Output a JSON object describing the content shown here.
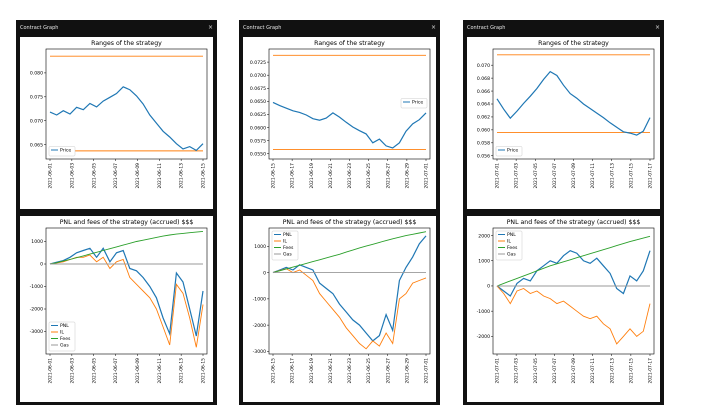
{
  "windows": [
    {
      "title": "Contract Graph",
      "close_glyph": "×",
      "top_chart": {
        "type": "line",
        "title": "Ranges of the strategy",
        "yticks": [
          "0.080",
          "0.075",
          "0.070",
          "0.065"
        ],
        "xticks": [
          "2021-06-01",
          "2021-06-03",
          "2021-06-05",
          "2021-06-07",
          "2021-06-09",
          "2021-06-11",
          "2021-06-13",
          "2021-06-15"
        ],
        "ylim": [
          0.062,
          0.085
        ],
        "range_upper": 0.0835,
        "range_lower": 0.0637,
        "legend": [
          "Price"
        ],
        "legend_pos": "bottom-left",
        "series": [
          {
            "name": "Price",
            "color": "#1f77b4",
            "values": [
              0.0718,
              0.0712,
              0.0721,
              0.0714,
              0.0728,
              0.0723,
              0.0736,
              0.0729,
              0.0741,
              0.0749,
              0.0757,
              0.0771,
              0.0765,
              0.0752,
              0.0735,
              0.0712,
              0.0695,
              0.0678,
              0.0666,
              0.0652,
              0.0641,
              0.0646,
              0.0638,
              0.0652
            ]
          }
        ],
        "range_color": "#ff7f0e"
      },
      "bottom_chart": {
        "type": "line",
        "title": "PNL and fees of the strategy (accrued) $$$",
        "yticks": [
          "1000",
          "0",
          "-1000",
          "-2000",
          "-3000"
        ],
        "xticks": [
          "2021-06-01",
          "2021-06-03",
          "2021-06-05",
          "2021-06-07",
          "2021-06-09",
          "2021-06-11",
          "2021-06-13",
          "2021-06-15"
        ],
        "ylim": [
          -4000,
          1600
        ],
        "legend": [
          "PNL",
          "IL",
          "Fees",
          "Gas"
        ],
        "legend_pos": "bottom-left",
        "series": [
          {
            "name": "PNL",
            "color": "#1f77b4",
            "values": [
              0,
              80,
              150,
              300,
              500,
              600,
              700,
              300,
              700,
              100,
              500,
              600,
              -200,
              -300,
              -600,
              -1000,
              -1500,
              -2400,
              -3100,
              -400,
              -800,
              -2000,
              -3200,
              -1200
            ]
          },
          {
            "name": "IL",
            "color": "#ff7f0e",
            "values": [
              0,
              50,
              100,
              200,
              300,
              300,
              400,
              100,
              300,
              -200,
              100,
              200,
              -600,
              -900,
              -1200,
              -1500,
              -2000,
              -2800,
              -3600,
              -900,
              -1300,
              -2400,
              -3700,
              -1800
            ]
          },
          {
            "name": "Fees",
            "color": "#2ca02c",
            "values": [
              0,
              60,
              130,
              200,
              280,
              360,
              440,
              520,
              600,
              680,
              760,
              840,
              920,
              1000,
              1060,
              1120,
              1180,
              1240,
              1290,
              1330,
              1360,
              1390,
              1420,
              1450
            ]
          },
          {
            "name": "Gas",
            "color": "#999999",
            "values": [
              0,
              0,
              0,
              0,
              0,
              0,
              0,
              0,
              0,
              0,
              0,
              0,
              0,
              0,
              0,
              0,
              0,
              0,
              0,
              0,
              0,
              0,
              0,
              0
            ]
          }
        ]
      }
    },
    {
      "title": "Contract Graph",
      "close_glyph": "×",
      "top_chart": {
        "type": "line",
        "title": "Ranges of the strategy",
        "yticks": [
          "0.0725",
          "0.0700",
          "0.0675",
          "0.0650",
          "0.0625",
          "0.0600",
          "0.0575",
          "0.0550"
        ],
        "xticks": [
          "2021-06-15",
          "2021-06-17",
          "2021-06-19",
          "2021-06-21",
          "2021-06-23",
          "2021-06-25",
          "2021-06-27",
          "2021-06-29",
          "2021-07-01"
        ],
        "ylim": [
          0.054,
          0.075
        ],
        "range_upper": 0.0738,
        "range_lower": 0.0558,
        "legend": [
          "Price"
        ],
        "legend_pos": "center-right",
        "series": [
          {
            "name": "Price",
            "color": "#1f77b4",
            "values": [
              0.0648,
              0.0642,
              0.0637,
              0.0632,
              0.0629,
              0.0624,
              0.0617,
              0.0614,
              0.0618,
              0.0628,
              0.062,
              0.061,
              0.0601,
              0.0594,
              0.0588,
              0.0571,
              0.0578,
              0.0565,
              0.0561,
              0.0571,
              0.0593,
              0.0607,
              0.0615,
              0.0628
            ]
          }
        ],
        "range_color": "#ff7f0e"
      },
      "bottom_chart": {
        "type": "line",
        "title": "PNL and fees of the strategy (accrued) $$$",
        "yticks": [
          "1000",
          "0",
          "-1000",
          "-2000",
          "-3000"
        ],
        "xticks": [
          "2021-06-15",
          "2021-06-17",
          "2021-06-19",
          "2021-06-21",
          "2021-06-23",
          "2021-06-25",
          "2021-06-27",
          "2021-06-29",
          "2021-07-01"
        ],
        "ylim": [
          -3100,
          1700
        ],
        "legend": [
          "PNL",
          "IL",
          "Fees",
          "Gas"
        ],
        "legend_pos": "top-left",
        "series": [
          {
            "name": "PNL",
            "color": "#1f77b4",
            "values": [
              0,
              100,
              200,
              100,
              300,
              200,
              100,
              -400,
              -600,
              -800,
              -1200,
              -1500,
              -1800,
              -2000,
              -2300,
              -2600,
              -2400,
              -1600,
              -2200,
              -300,
              200,
              600,
              1100,
              1400
            ]
          },
          {
            "name": "IL",
            "color": "#ff7f0e",
            "values": [
              0,
              80,
              150,
              0,
              100,
              -100,
              -300,
              -800,
              -1100,
              -1400,
              -1700,
              -2100,
              -2400,
              -2700,
              -2900,
              -2600,
              -2800,
              -2300,
              -2700,
              -1000,
              -800,
              -400,
              -300,
              -200
            ]
          },
          {
            "name": "Fees",
            "color": "#2ca02c",
            "values": [
              0,
              70,
              140,
              210,
              280,
              350,
              420,
              490,
              560,
              630,
              700,
              780,
              860,
              940,
              1010,
              1080,
              1150,
              1220,
              1290,
              1350,
              1410,
              1460,
              1510,
              1560
            ]
          },
          {
            "name": "Gas",
            "color": "#999999",
            "values": [
              0,
              0,
              0,
              0,
              0,
              0,
              0,
              0,
              0,
              0,
              0,
              0,
              0,
              0,
              0,
              0,
              0,
              0,
              0,
              0,
              0,
              0,
              0,
              0
            ]
          }
        ]
      }
    },
    {
      "title": "Contract Graph",
      "close_glyph": "×",
      "top_chart": {
        "type": "line",
        "title": "Ranges of the strategy",
        "yticks": [
          "0.070",
          "0.068",
          "0.066",
          "0.064",
          "0.062",
          "0.060",
          "0.058",
          "0.056"
        ],
        "xticks": [
          "2021-07-01",
          "2021-07-03",
          "2021-07-05",
          "2021-07-07",
          "2021-07-09",
          "2021-07-11",
          "2021-07-13",
          "2021-07-15",
          "2021-07-17"
        ],
        "ylim": [
          0.0555,
          0.0725
        ],
        "range_upper": 0.0716,
        "range_lower": 0.0596,
        "legend": [
          "Price"
        ],
        "legend_pos": "bottom-left",
        "series": [
          {
            "name": "Price",
            "color": "#1f77b4",
            "values": [
              0.0648,
              0.0632,
              0.0618,
              0.0629,
              0.0641,
              0.0652,
              0.0664,
              0.0678,
              0.069,
              0.0684,
              0.0669,
              0.0656,
              0.0649,
              0.064,
              0.0633,
              0.0626,
              0.0619,
              0.0611,
              0.0604,
              0.0597,
              0.0595,
              0.0592,
              0.0598,
              0.0619
            ]
          }
        ],
        "range_color": "#ff7f0e"
      },
      "bottom_chart": {
        "type": "line",
        "title": "PNL and fees of the strategy (accrued) $$$",
        "yticks": [
          "2000",
          "1000",
          "0",
          "-1000",
          "-2000"
        ],
        "xticks": [
          "2021-07-01",
          "2021-07-03",
          "2021-07-05",
          "2021-07-07",
          "2021-07-09",
          "2021-07-11",
          "2021-07-13",
          "2021-07-15",
          "2021-07-17"
        ],
        "ylim": [
          -2700,
          2300
        ],
        "legend": [
          "PNL",
          "IL",
          "Fees",
          "Gas"
        ],
        "legend_pos": "top-left",
        "series": [
          {
            "name": "PNL",
            "color": "#1f77b4",
            "values": [
              0,
              -200,
              -400,
              100,
              300,
              200,
              600,
              800,
              1000,
              900,
              1200,
              1400,
              1300,
              1000,
              900,
              1100,
              800,
              500,
              -100,
              -300,
              400,
              200,
              600,
              1400
            ]
          },
          {
            "name": "IL",
            "color": "#ff7f0e",
            "values": [
              0,
              -300,
              -700,
              -200,
              -100,
              -300,
              -200,
              -400,
              -500,
              -700,
              -600,
              -800,
              -1000,
              -1200,
              -1300,
              -1200,
              -1500,
              -1700,
              -2300,
              -2000,
              -1700,
              -2000,
              -1800,
              -700
            ]
          },
          {
            "name": "Fees",
            "color": "#2ca02c",
            "values": [
              0,
              100,
              200,
              300,
              400,
              500,
              600,
              700,
              800,
              880,
              960,
              1040,
              1120,
              1200,
              1280,
              1360,
              1440,
              1520,
              1600,
              1680,
              1760,
              1830,
              1900,
              1970
            ]
          },
          {
            "name": "Gas",
            "color": "#999999",
            "values": [
              0,
              0,
              0,
              0,
              0,
              0,
              0,
              0,
              0,
              0,
              0,
              0,
              0,
              0,
              0,
              0,
              0,
              0,
              0,
              0,
              0,
              0,
              0,
              0
            ]
          }
        ]
      }
    }
  ]
}
